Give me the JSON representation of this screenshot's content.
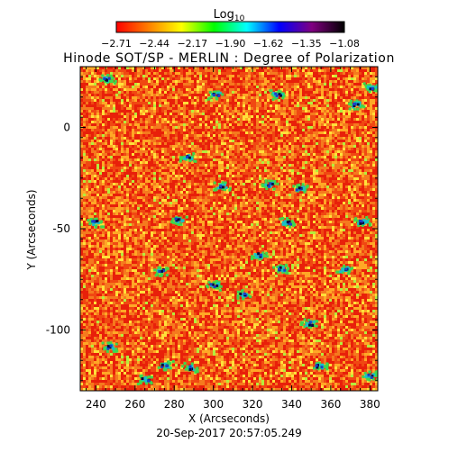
{
  "chart_data": {
    "type": "heatmap",
    "title": "Hinode SOT/SP - MERLIN : Degree of Polarization",
    "colorbar": {
      "label_main": "Log",
      "label_sub": "10",
      "ticks": [
        "−2.71",
        "−2.44",
        "−2.17",
        "−1.90",
        "−1.62",
        "−1.35",
        "−1.08"
      ],
      "range": [
        -2.71,
        -1.08
      ],
      "colors": [
        "#ff0000",
        "#ff8000",
        "#ffff00",
        "#00ff00",
        "#00ffff",
        "#0000ff",
        "#800080",
        "#000000"
      ]
    },
    "xlabel": "X (Arcseconds)",
    "ylabel": "Y (Arcseconds)",
    "xlim": [
      232,
      384
    ],
    "ylim": [
      -130,
      30
    ],
    "x_ticks": [
      240,
      260,
      280,
      300,
      320,
      340,
      360,
      380
    ],
    "y_ticks": [
      0,
      -50,
      -100
    ],
    "field_colors": [
      "#e8200a",
      "#f04812",
      "#f57a1e",
      "#ffa826",
      "#ffe03a",
      "#b4ee3c",
      "#3cd84c",
      "#18c0c8",
      "#1a40c8",
      "#0a0a40"
    ]
  },
  "timestamp": "20-Sep-2017 20:57:05.249"
}
